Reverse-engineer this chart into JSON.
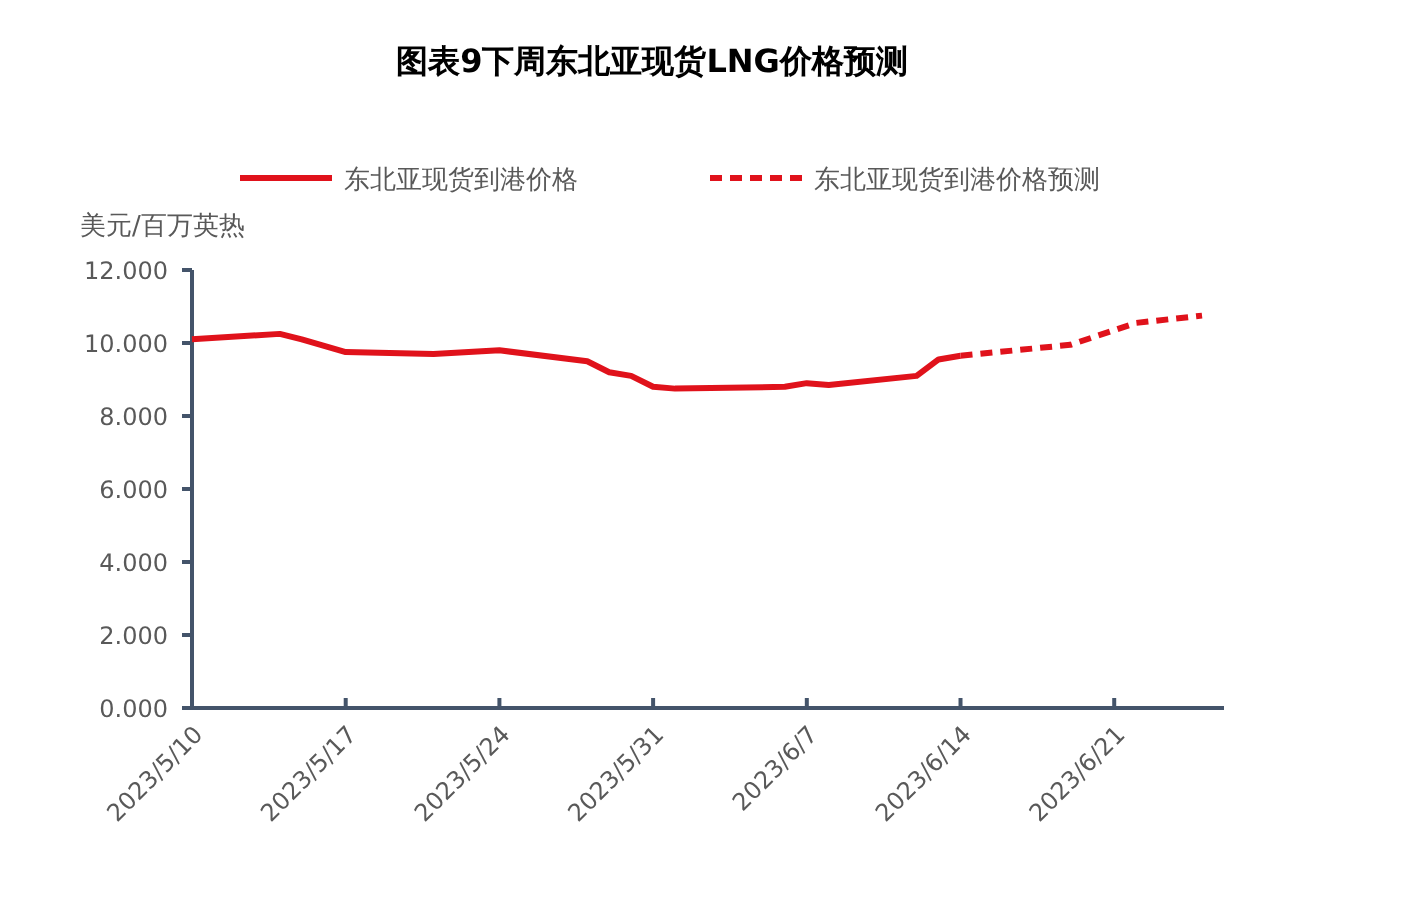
{
  "chart_data": {
    "type": "line",
    "title": "图表9下周东北亚现货LNG价格预测",
    "ylabel": "美元/百万英热",
    "series": [
      {
        "name": "东北亚现货到港价格",
        "color": "#e0121b",
        "line_style": "solid",
        "x": [
          "2023-05-10",
          "2023-05-14",
          "2023-05-15",
          "2023-05-17",
          "2023-05-21",
          "2023-05-24",
          "2023-05-28",
          "2023-05-29",
          "2023-05-30",
          "2023-05-31",
          "2023-06-01",
          "2023-06-06",
          "2023-06-07",
          "2023-06-08",
          "2023-06-12",
          "2023-06-13",
          "2023-06-14"
        ],
        "values": [
          10.1,
          10.25,
          10.1,
          9.75,
          9.7,
          9.8,
          9.5,
          9.2,
          9.1,
          8.8,
          8.75,
          8.8,
          8.9,
          8.85,
          9.1,
          9.55,
          9.65
        ]
      },
      {
        "name": "东北亚现货到港价格预测",
        "color": "#e0121b",
        "line_style": "dashed",
        "x": [
          "2023-06-14",
          "2023-06-19",
          "2023-06-22",
          "2023-06-25"
        ],
        "values": [
          9.65,
          9.95,
          10.55,
          10.75
        ]
      }
    ],
    "xlim": [
      "2023-05-10",
      "2023-06-26"
    ],
    "xticks": [
      {
        "value": "2023-05-10",
        "label": "2023/5/10"
      },
      {
        "value": "2023-05-17",
        "label": "2023/5/17"
      },
      {
        "value": "2023-05-24",
        "label": "2023/5/24"
      },
      {
        "value": "2023-05-31",
        "label": "2023/5/31"
      },
      {
        "value": "2023-06-07",
        "label": "2023/6/7"
      },
      {
        "value": "2023-06-14",
        "label": "2023/6/14"
      },
      {
        "value": "2023-06-21",
        "label": "2023/6/21"
      }
    ],
    "ylim": [
      0,
      12
    ],
    "yticks": [
      {
        "value": 0,
        "label": "0.000"
      },
      {
        "value": 2,
        "label": "2.000"
      },
      {
        "value": 4,
        "label": "4.000"
      },
      {
        "value": 6,
        "label": "6.000"
      },
      {
        "value": 8,
        "label": "8.000"
      },
      {
        "value": 10,
        "label": "10.000"
      },
      {
        "value": 12,
        "label": "12.000"
      }
    ],
    "grid": false,
    "legend": "top"
  }
}
